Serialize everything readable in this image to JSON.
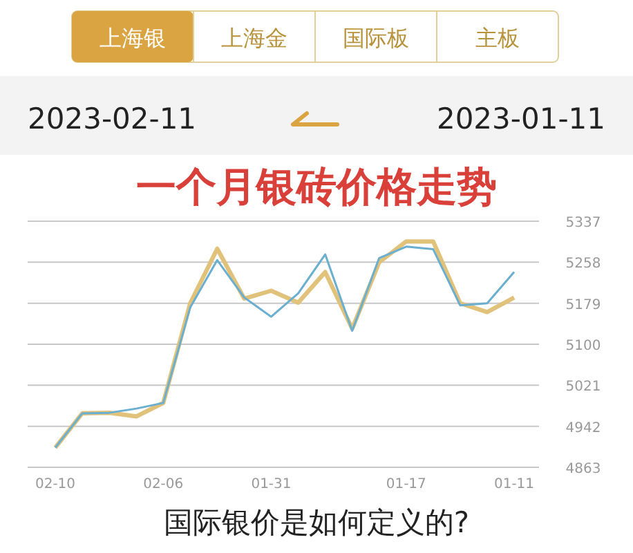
{
  "chart_data": {
    "type": "line",
    "title": "一个月银砖价格走势",
    "annotations": [
      "上海银",
      "上海金",
      "国际板",
      "主板",
      "2023-02-11",
      "2023-01-11",
      "国际银价是如何定义的?"
    ],
    "categories": [
      "02-10",
      null,
      null,
      null,
      "02-06",
      null,
      null,
      null,
      "01-31",
      null,
      null,
      null,
      null,
      "01-17",
      null,
      null,
      null,
      "01-11"
    ],
    "series": [
      {
        "color": "#6aaed0",
        "values": [
          4901,
          4967,
          4968,
          4976,
          4987,
          5171,
          5262,
          5190,
          5153,
          5198,
          5273,
          5126,
          5266,
          5288,
          5283,
          5175,
          5179,
          5239
        ]
      },
      {
        "color": "#e0c27a",
        "values": [
          4901,
          4967,
          4968,
          4961,
          4987,
          5179,
          5284,
          5188,
          5203,
          5180,
          5239,
          5130,
          5258,
          5298,
          5298,
          5179,
          5162,
          5190
        ]
      }
    ],
    "ylim": [
      4863,
      5337
    ],
    "yticks": [
      4863,
      4942,
      5021,
      5100,
      5179,
      5258,
      5337
    ],
    "grid": "y",
    "line_style": "solid",
    "marker": "none"
  }
}
